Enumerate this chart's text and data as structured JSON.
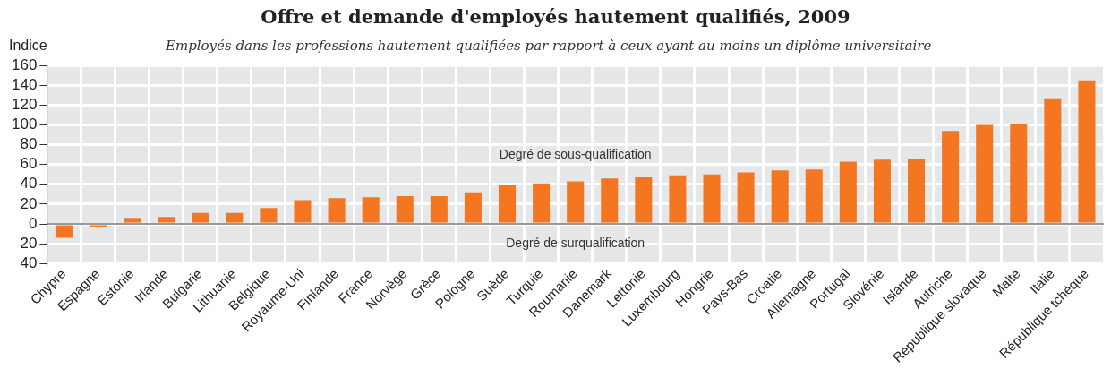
{
  "chart_data": {
    "type": "bar",
    "title": "Offre et demande d'employés hautement qualifiés, 2009",
    "subtitle": "Employés dans les professions hautement qualifiées par rapport à ceux ayant au moins un diplôme universitaire",
    "ylabel": "Indice",
    "categories": [
      "Chypre",
      "Espagne",
      "Estonie",
      "Irlande",
      "Bulgarie",
      "Lithuanie",
      "Belgique",
      "Royaume-Uni",
      "Finlande",
      "France",
      "Norvège",
      "Grèce",
      "Pologne",
      "Suède",
      "Turquie",
      "Roumanie",
      "Danemark",
      "Lettonie",
      "Luxembourg",
      "Hongrie",
      "Pays-Bas",
      "Croatie",
      "Allemagne",
      "Portugal",
      "Slovénie",
      "Islande",
      "Autriche",
      "République slovaque",
      "Malte",
      "Italie",
      "République tchèque"
    ],
    "values": [
      -14,
      -3,
      6,
      7,
      11,
      11,
      16,
      24,
      26,
      27,
      28,
      28,
      32,
      39,
      41,
      43,
      46,
      47,
      49,
      50,
      52,
      54,
      55,
      63,
      65,
      66,
      94,
      100,
      101,
      127,
      145
    ],
    "color": "#f47621",
    "ylim": [
      -40,
      160
    ],
    "yticks": [
      {
        "value": -40,
        "label": "40"
      },
      {
        "value": -20,
        "label": "20"
      },
      0,
      20,
      40,
      60,
      80,
      100,
      120,
      140,
      160
    ],
    "grid": true,
    "annotations": [
      "Degré de sous-qualification",
      "Degré de surqualification"
    ]
  }
}
